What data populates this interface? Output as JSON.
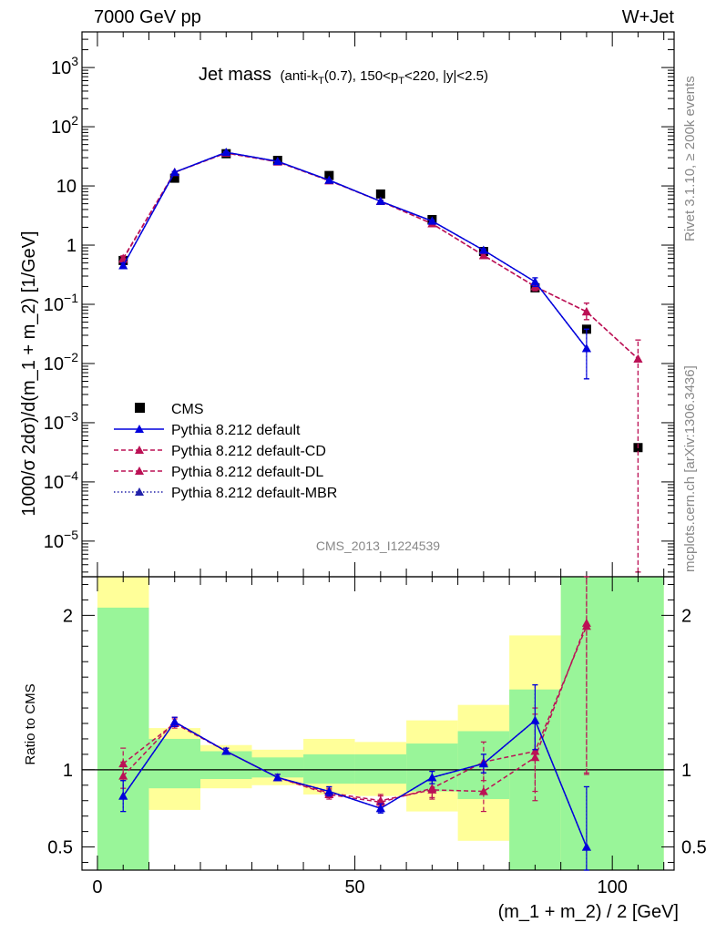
{
  "header": {
    "left": "7000 GeV pp",
    "right": "W+Jet"
  },
  "side_texts": {
    "top": "Rivet 3.1.10, ≥ 200k events",
    "bottom": "mcplots.cern.ch [arXiv:1306.3436]"
  },
  "chart_data": [
    {
      "type": "line",
      "title": "Jet mass",
      "subtitle": "(anti-kT(0.7), 150<pT<220, |y|<2.5)",
      "watermark": "CMS_2013_I1224539",
      "ylabel": "1000/σ 2dσ)/d(m_1 + m_2) [1/GeV]",
      "yscale": "log",
      "ylim": [
        2.5e-06,
        4000
      ],
      "xlim": [
        -3,
        112
      ],
      "legend_position": "bottom-left",
      "y_tick_labels": [
        "10^-5",
        "10^-4",
        "10^-3",
        "10^-2",
        "10^-1",
        "1",
        "10",
        "10^2",
        "10^3"
      ],
      "data": {
        "name": "CMS",
        "x": [
          5,
          15,
          25,
          35,
          45,
          55,
          65,
          75,
          85,
          95,
          105
        ],
        "y": [
          0.55,
          13.5,
          35,
          27,
          15,
          7.3,
          2.7,
          0.78,
          0.19,
          0.038,
          0.00038
        ]
      },
      "series": [
        {
          "name": "Pythia 8.212 default",
          "style": "solid",
          "color": "#0000dd",
          "x": [
            5,
            15,
            25,
            35,
            45,
            55,
            65,
            75,
            85,
            95
          ],
          "y": [
            0.45,
            17,
            37,
            26,
            12.5,
            5.5,
            2.55,
            0.82,
            0.24,
            0.018
          ],
          "err_low": [
            0.4,
            16.5,
            36,
            25.5,
            12.2,
            5.3,
            2.45,
            0.78,
            0.2,
            0.0055
          ],
          "err_high": [
            0.5,
            17.5,
            38,
            26.5,
            12.8,
            5.7,
            2.65,
            0.86,
            0.28,
            0.038
          ]
        },
        {
          "name": "Pythia 8.212 default-CD",
          "style": "dashed",
          "color": "#bb1155",
          "x": [
            5,
            15,
            25,
            35,
            45,
            55,
            65,
            75,
            85,
            95,
            105
          ],
          "y": [
            0.58,
            17,
            36,
            25.5,
            12.3,
            5.5,
            2.3,
            0.67,
            0.2,
            0.075,
            0.012
          ],
          "err_low": [
            0.52,
            16.5,
            35,
            25,
            12,
            5.3,
            2.2,
            0.62,
            0.17,
            0.055,
            3e-06
          ],
          "err_high": [
            0.64,
            17.5,
            37,
            26,
            12.6,
            5.7,
            2.4,
            0.72,
            0.23,
            0.105,
            0.025
          ]
        },
        {
          "name": "Pythia 8.212 default-DL",
          "style": "dashed",
          "color": "#bb1155",
          "x": [
            5,
            15,
            25,
            35,
            45,
            55,
            65,
            75,
            85,
            95,
            105
          ],
          "y": [
            0.6,
            17,
            36,
            25.5,
            12.3,
            5.5,
            2.3,
            0.67,
            0.2,
            0.075,
            0.012
          ],
          "err_low": [
            0.54,
            16.5,
            35,
            25,
            12,
            5.3,
            2.2,
            0.62,
            0.17,
            0.055,
            3e-06
          ],
          "err_high": [
            0.66,
            17.5,
            37,
            26,
            12.6,
            5.7,
            2.4,
            0.72,
            0.23,
            0.105,
            0.025
          ]
        },
        {
          "name": "Pythia 8.212 default-MBR",
          "style": "dotted",
          "color": "#2222aa",
          "x": [
            5,
            15,
            25,
            35,
            45,
            55,
            65,
            75,
            85,
            95
          ],
          "y": [
            0.45,
            17,
            37,
            26,
            12.5,
            5.5,
            2.55,
            0.82,
            0.24,
            0.018
          ],
          "err_low": [
            0.4,
            16.5,
            36,
            25.5,
            12.2,
            5.3,
            2.45,
            0.78,
            0.2,
            0.0055
          ],
          "err_high": [
            0.5,
            17.5,
            38,
            26.5,
            12.8,
            5.7,
            2.65,
            0.86,
            0.28,
            0.038
          ]
        }
      ]
    },
    {
      "type": "line",
      "title": "",
      "ylabel": "Ratio to CMS",
      "xlabel": "(m_1 + m_2) / 2 [GeV]",
      "ylim": [
        0.35,
        2.25
      ],
      "xlim": [
        -3,
        112
      ],
      "y_ticks": [
        0.5,
        1,
        2
      ],
      "x_ticks": [
        0,
        50,
        100
      ],
      "bands": [
        {
          "x0": 0,
          "x1": 10,
          "green": [
            0.1,
            2.05
          ],
          "yellow": [
            0.1,
            2.4
          ]
        },
        {
          "x0": 10,
          "x1": 20,
          "green": [
            0.88,
            1.2
          ],
          "yellow": [
            0.74,
            1.27
          ]
        },
        {
          "x0": 20,
          "x1": 30,
          "green": [
            0.94,
            1.12
          ],
          "yellow": [
            0.88,
            1.16
          ]
        },
        {
          "x0": 30,
          "x1": 40,
          "green": [
            0.95,
            1.08
          ],
          "yellow": [
            0.9,
            1.13
          ]
        },
        {
          "x0": 40,
          "x1": 50,
          "green": [
            0.91,
            1.1
          ],
          "yellow": [
            0.84,
            1.2
          ]
        },
        {
          "x0": 50,
          "x1": 60,
          "green": [
            0.91,
            1.1
          ],
          "yellow": [
            0.83,
            1.18
          ]
        },
        {
          "x0": 60,
          "x1": 70,
          "green": [
            0.86,
            1.17
          ],
          "yellow": [
            0.73,
            1.32
          ]
        },
        {
          "x0": 70,
          "x1": 80,
          "green": [
            0.81,
            1.25
          ],
          "yellow": [
            0.54,
            1.42
          ]
        },
        {
          "x0": 80,
          "x1": 90,
          "green": [
            0.3,
            1.52
          ],
          "yellow": [
            0.3,
            1.87
          ]
        },
        {
          "x0": 90,
          "x1": 110,
          "green": [
            0.3,
            2.4
          ],
          "yellow": [
            0.3,
            2.4
          ]
        }
      ],
      "series": [
        {
          "name": "Pythia 8.212 default",
          "style": "solid",
          "color": "#0000dd",
          "x": [
            5,
            15,
            25,
            35,
            45,
            55,
            65,
            75,
            85,
            95
          ],
          "y": [
            0.83,
            1.31,
            1.12,
            0.95,
            0.86,
            0.75,
            0.95,
            1.04,
            1.32,
            0.5
          ],
          "err_low": [
            0.73,
            1.28,
            1.1,
            0.93,
            0.83,
            0.72,
            0.91,
            0.98,
            1.13,
            0.3
          ],
          "err_high": [
            0.93,
            1.34,
            1.14,
            0.97,
            0.89,
            0.78,
            0.99,
            1.1,
            1.55,
            0.89
          ]
        },
        {
          "name": "Pythia 8.212 default-CD",
          "style": "dashed",
          "color": "#bb1155",
          "x": [
            5,
            15,
            25,
            35,
            45,
            55,
            65,
            75,
            85,
            95
          ],
          "y": [
            1.04,
            1.3,
            1.12,
            0.95,
            0.85,
            0.8,
            0.87,
            0.86,
            1.08,
            1.95
          ],
          "err_low": [
            0.95,
            1.27,
            1.1,
            0.93,
            0.82,
            0.77,
            0.81,
            0.73,
            0.8,
            0.98
          ],
          "err_high": [
            1.14,
            1.33,
            1.14,
            0.97,
            0.88,
            0.84,
            0.93,
            1.0,
            1.36,
            2.4
          ]
        },
        {
          "name": "Pythia 8.212 default-DL",
          "style": "dashed",
          "color": "#bb1155",
          "x": [
            5,
            15,
            25,
            35,
            45,
            55,
            65,
            75,
            85,
            95
          ],
          "y": [
            0.96,
            1.31,
            1.12,
            0.95,
            0.84,
            0.79,
            0.88,
            1.05,
            1.12,
            1.93
          ],
          "err_low": [
            0.88,
            1.28,
            1.1,
            0.93,
            0.81,
            0.76,
            0.82,
            0.93,
            0.86,
            0.97
          ],
          "err_high": [
            1.05,
            1.34,
            1.14,
            0.97,
            0.87,
            0.83,
            0.94,
            1.18,
            1.4,
            2.4
          ]
        },
        {
          "name": "Pythia 8.212 default-MBR",
          "style": "dotted",
          "color": "#2222aa",
          "x": [
            5,
            15,
            25,
            35,
            45,
            55,
            65,
            75,
            85,
            95
          ],
          "y": [
            0.83,
            1.31,
            1.12,
            0.95,
            0.86,
            0.75,
            0.95,
            1.04,
            1.32,
            0.5
          ],
          "err_low": [
            0.73,
            1.28,
            1.1,
            0.93,
            0.83,
            0.72,
            0.91,
            0.98,
            1.13,
            0.3
          ],
          "err_high": [
            0.93,
            1.34,
            1.14,
            0.97,
            0.89,
            0.78,
            0.99,
            1.1,
            1.55,
            0.89
          ]
        }
      ]
    }
  ],
  "colors": {
    "green_band": "#99f599",
    "yellow_band": "#ffff99",
    "data": "#000000"
  }
}
